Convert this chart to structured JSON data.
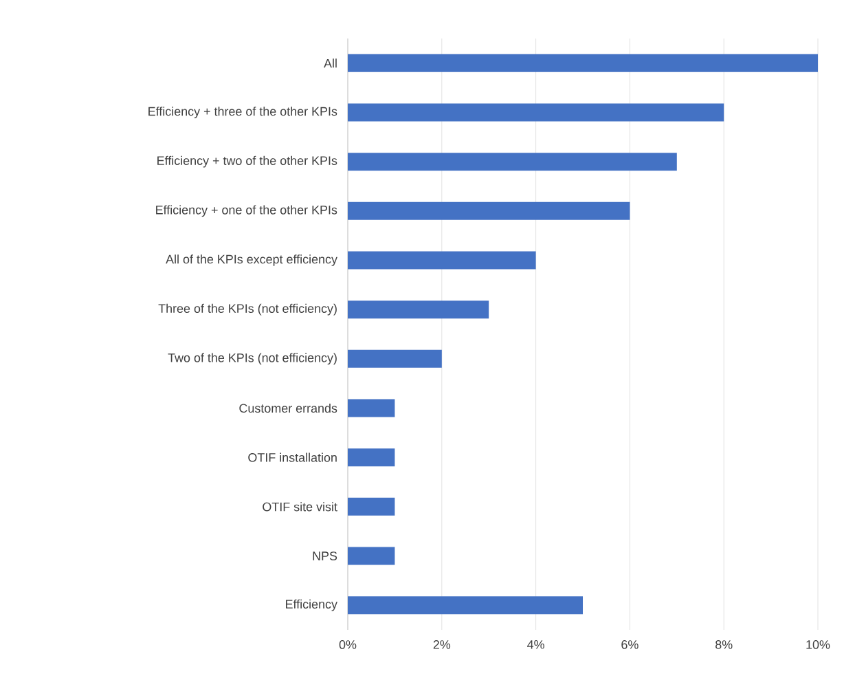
{
  "chart_data": {
    "type": "bar",
    "orientation": "horizontal",
    "categories": [
      "All",
      "Efficiency + three of the other KPIs",
      "Efficiency + two of the other KPIs",
      "Efficiency + one of the other KPIs",
      "All of the KPIs except efficiency",
      "Three of the KPIs (not efficiency)",
      "Two of the KPIs (not efficiency)",
      "Customer errands",
      "OTIF installation",
      "OTIF site visit",
      "NPS",
      "Efficiency"
    ],
    "values": [
      10,
      8,
      7,
      6,
      4,
      3,
      2,
      1,
      1,
      1,
      1,
      5
    ],
    "color": "#4472c4",
    "xlim": [
      0,
      10
    ],
    "xticks": [
      {
        "value": 0,
        "label": "0%"
      },
      {
        "value": 2,
        "label": "2%"
      },
      {
        "value": 4,
        "label": "4%"
      },
      {
        "value": 6,
        "label": "6%"
      },
      {
        "value": 8,
        "label": "8%"
      },
      {
        "value": 10,
        "label": "10%"
      }
    ],
    "grid": "x"
  }
}
